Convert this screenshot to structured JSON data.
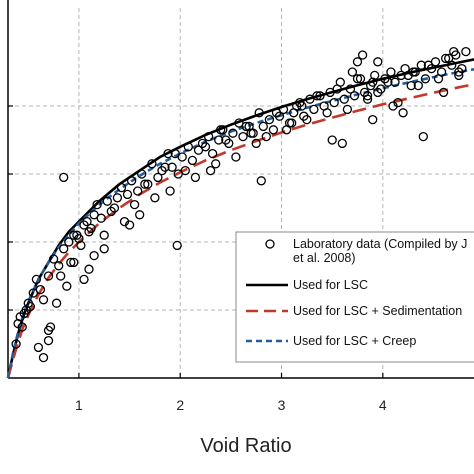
{
  "chart_data": {
    "type": "scatter",
    "title": "",
    "xlabel": "Void Ratio",
    "ylabel": "",
    "xlim": [
      0.3,
      4.9
    ],
    "ylim": [
      0,
      10
    ],
    "xticks": [
      "1",
      "2",
      "3",
      "4"
    ],
    "grid": true,
    "legend_position": "lower-right",
    "series": [
      {
        "name": "Laboratory data (Compiled by J... et al. 2008)",
        "kind": "scatter",
        "color": "#000000",
        "x": [
          0.38,
          0.4,
          0.42,
          0.44,
          0.46,
          0.48,
          0.5,
          0.52,
          0.55,
          0.58,
          0.62,
          0.65,
          0.7,
          0.75,
          0.8,
          0.85,
          0.9,
          0.95,
          1.0,
          1.05,
          1.1,
          1.15,
          0.6,
          0.65,
          0.7,
          0.72,
          0.78,
          0.82,
          0.88,
          0.92,
          0.98,
          1.02,
          1.08,
          1.12,
          1.18,
          1.22,
          1.28,
          1.32,
          1.38,
          1.42,
          1.48,
          1.52,
          1.58,
          1.62,
          1.68,
          1.72,
          1.78,
          1.82,
          1.88,
          1.92,
          1.98,
          2.02,
          2.08,
          2.12,
          2.18,
          2.22,
          2.28,
          2.32,
          2.38,
          2.42,
          2.48,
          2.52,
          2.58,
          2.62,
          2.68,
          2.72,
          2.78,
          2.82,
          2.88,
          2.92,
          2.98,
          3.02,
          3.08,
          3.12,
          3.18,
          3.22,
          3.28,
          3.32,
          3.38,
          3.42,
          3.48,
          3.52,
          3.58,
          3.62,
          3.68,
          3.72,
          3.78,
          3.82,
          3.88,
          3.92,
          3.98,
          4.02,
          4.08,
          4.12,
          4.18,
          4.22,
          4.28,
          4.32,
          4.38,
          4.42,
          4.48,
          4.52,
          4.58,
          4.62,
          4.68,
          4.72,
          4.78,
          4.82,
          0.95,
          1.05,
          1.15,
          1.25,
          1.35,
          1.45,
          1.55,
          1.65,
          1.75,
          1.85,
          1.95,
          2.05,
          2.15,
          2.25,
          2.35,
          2.45,
          2.55,
          2.65,
          2.75,
          2.85,
          2.95,
          3.05,
          3.15,
          3.25,
          3.35,
          3.45,
          3.55,
          3.65,
          3.75,
          3.85,
          3.95,
          4.05,
          4.15,
          4.25,
          4.35,
          4.45,
          4.55,
          4.65,
          4.75,
          0.85,
          1.25,
          1.6,
          1.97,
          2.4,
          2.8,
          3.2,
          3.6,
          3.95,
          4.2,
          4.4,
          4.6,
          4.75,
          0.7,
          1.1,
          1.5,
          1.9,
          2.3,
          2.7,
          3.1,
          3.5,
          3.9,
          4.3,
          4.7,
          3.7,
          3.75,
          3.8,
          3.85,
          3.9,
          4.1
        ],
        "y": [
          1.0,
          1.6,
          1.8,
          1.5,
          1.9,
          2.0,
          2.2,
          2.1,
          2.5,
          2.9,
          2.6,
          2.3,
          3.0,
          3.5,
          3.3,
          3.8,
          4.0,
          4.2,
          4.1,
          4.5,
          4.3,
          4.8,
          0.9,
          0.6,
          1.1,
          1.5,
          2.2,
          3.0,
          2.7,
          3.4,
          4.2,
          3.9,
          4.6,
          4.4,
          5.1,
          4.7,
          5.2,
          4.9,
          5.3,
          5.6,
          5.4,
          5.8,
          5.5,
          6.0,
          5.7,
          6.3,
          5.9,
          6.1,
          6.6,
          6.2,
          6.0,
          6.5,
          6.8,
          6.4,
          6.7,
          6.9,
          7.1,
          6.6,
          7.0,
          7.3,
          6.9,
          7.2,
          7.5,
          7.1,
          7.4,
          7.2,
          7.8,
          7.4,
          7.6,
          7.3,
          7.7,
          7.9,
          7.5,
          7.8,
          8.1,
          7.7,
          8.2,
          7.9,
          8.3,
          8.0,
          8.4,
          8.1,
          8.7,
          8.2,
          8.5,
          8.3,
          8.8,
          8.4,
          8.6,
          8.9,
          8.5,
          8.8,
          9.0,
          8.7,
          8.9,
          9.1,
          8.6,
          9.0,
          9.2,
          8.8,
          9.1,
          9.3,
          9.0,
          9.4,
          9.2,
          9.5,
          9.1,
          9.6,
          3.4,
          2.9,
          3.6,
          4.2,
          5.0,
          4.6,
          5.1,
          5.7,
          5.3,
          6.2,
          6.6,
          6.1,
          5.9,
          6.8,
          6.3,
          7.0,
          6.5,
          7.4,
          6.9,
          7.1,
          7.8,
          7.3,
          8.0,
          7.6,
          8.3,
          7.8,
          8.5,
          7.9,
          8.8,
          8.2,
          8.4,
          8.7,
          8.1,
          8.9,
          8.6,
          9.2,
          8.8,
          9.4,
          9.0,
          5.9,
          3.8,
          4.8,
          3.9,
          7.3,
          5.8,
          8.0,
          6.9,
          9.3,
          7.8,
          7.1,
          8.4,
          8.9,
          1.4,
          3.2,
          4.5,
          5.5,
          6.1,
          7.2,
          7.5,
          7.0,
          8.7,
          9.0,
          9.6,
          9.0,
          9.3,
          9.5,
          8.3,
          7.6,
          8.0
        ]
      },
      {
        "name": "Used for LSC",
        "kind": "line",
        "style": "solid",
        "color": "#000000",
        "x": [
          0.3,
          0.35,
          0.4,
          0.45,
          0.5,
          0.6,
          0.7,
          0.8,
          0.9,
          1.0,
          1.2,
          1.4,
          1.6,
          1.8,
          2.0,
          2.25,
          2.5,
          2.75,
          3.0,
          3.25,
          3.5,
          3.75,
          4.0,
          4.25,
          4.5,
          4.75,
          4.9
        ],
        "y": [
          0.0,
          0.7,
          1.3,
          1.8,
          2.2,
          2.9,
          3.4,
          3.9,
          4.3,
          4.6,
          5.2,
          5.7,
          6.1,
          6.5,
          6.8,
          7.15,
          7.45,
          7.72,
          7.97,
          8.2,
          8.41,
          8.61,
          8.8,
          8.97,
          9.13,
          9.28,
          9.37
        ]
      },
      {
        "name": "Used for LSC + Sedimentation",
        "kind": "line",
        "style": "dashed",
        "color": "#c0392b",
        "x": [
          0.3,
          0.35,
          0.4,
          0.45,
          0.5,
          0.6,
          0.7,
          0.8,
          0.9,
          1.0,
          1.2,
          1.4,
          1.6,
          1.8,
          2.0,
          2.25,
          2.5,
          2.75,
          3.0,
          3.25,
          3.5,
          3.75,
          4.0,
          4.25,
          4.5,
          4.75,
          4.9
        ],
        "y": [
          0.0,
          0.55,
          1.05,
          1.5,
          1.85,
          2.45,
          2.95,
          3.35,
          3.7,
          4.0,
          4.55,
          5.0,
          5.4,
          5.75,
          6.05,
          6.4,
          6.7,
          6.97,
          7.22,
          7.45,
          7.66,
          7.86,
          8.05,
          8.22,
          8.39,
          8.55,
          8.64
        ]
      },
      {
        "name": "Used for LSC + Creep",
        "kind": "line",
        "style": "dotted",
        "color": "#1f5f9f",
        "x": [
          0.3,
          0.35,
          0.4,
          0.45,
          0.5,
          0.6,
          0.7,
          0.8,
          0.9,
          1.0,
          1.2,
          1.4,
          1.6,
          1.8,
          2.0,
          2.25,
          2.5,
          2.75,
          3.0,
          3.25,
          3.5,
          3.75,
          4.0,
          4.25,
          4.5,
          4.75,
          4.9
        ],
        "y": [
          0.0,
          0.75,
          1.35,
          1.85,
          2.25,
          2.9,
          3.4,
          3.85,
          4.2,
          4.55,
          5.1,
          5.55,
          5.95,
          6.3,
          6.6,
          6.95,
          7.25,
          7.5,
          7.73,
          7.95,
          8.15,
          8.34,
          8.52,
          8.69,
          8.85,
          9.0,
          9.08
        ]
      }
    ]
  }
}
